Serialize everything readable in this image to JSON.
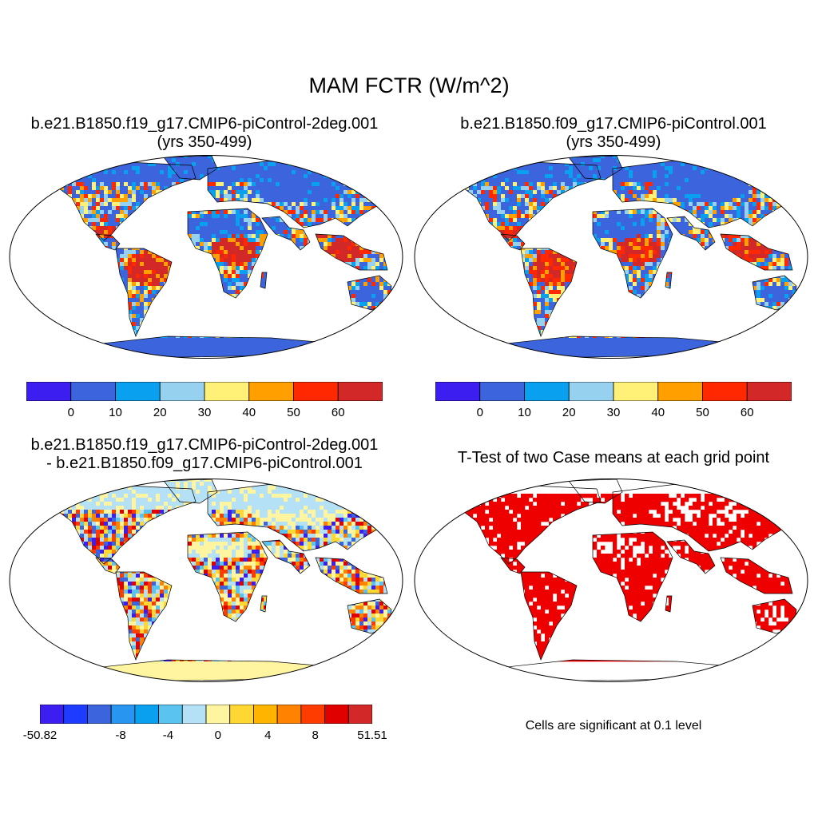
{
  "title": "MAM FCTR (W/m^2)",
  "panels": [
    {
      "id": "p1",
      "title_line1": "b.e21.B1850.f19_g17.CMIP6-piControl-2deg.001",
      "title_line2": "(yrs 350-499)"
    },
    {
      "id": "p2",
      "title_line1": "b.e21.B1850.f09_g17.CMIP6-piControl.001",
      "title_line2": "(yrs 350-499)"
    },
    {
      "id": "p3",
      "title_line1": "b.e21.B1850.f19_g17.CMIP6-piControl-2deg.001",
      "title_line2": "- b.e21.B1850.f09_g17.CMIP6-piControl.001"
    },
    {
      "id": "p4",
      "title_line1": "T-Test of two Case means at each grid point",
      "note": "Cells are significant at 0.1 level"
    }
  ],
  "colorbar_main": {
    "colors": [
      "#3c1ff0",
      "#3c64dc",
      "#0aa0f0",
      "#96d2f0",
      "#fff078",
      "#ffa000",
      "#ff2800",
      "#d22828"
    ],
    "labels": [
      "0",
      "10",
      "20",
      "30",
      "40",
      "50",
      "60"
    ]
  },
  "colorbar_diff": {
    "colors": [
      "#3c1ff0",
      "#1e3cff",
      "#3c64dc",
      "#2896f0",
      "#0aa0f0",
      "#5ac3f0",
      "#b4e1f5",
      "#fff5a0",
      "#ffd732",
      "#ffb400",
      "#ff8200",
      "#ff3c00",
      "#e10000",
      "#d22828"
    ],
    "labels": [
      "-50.82",
      "-8",
      "-4",
      "0",
      "4",
      "8",
      "51.51"
    ]
  },
  "ttest_color": "#ee0000"
}
